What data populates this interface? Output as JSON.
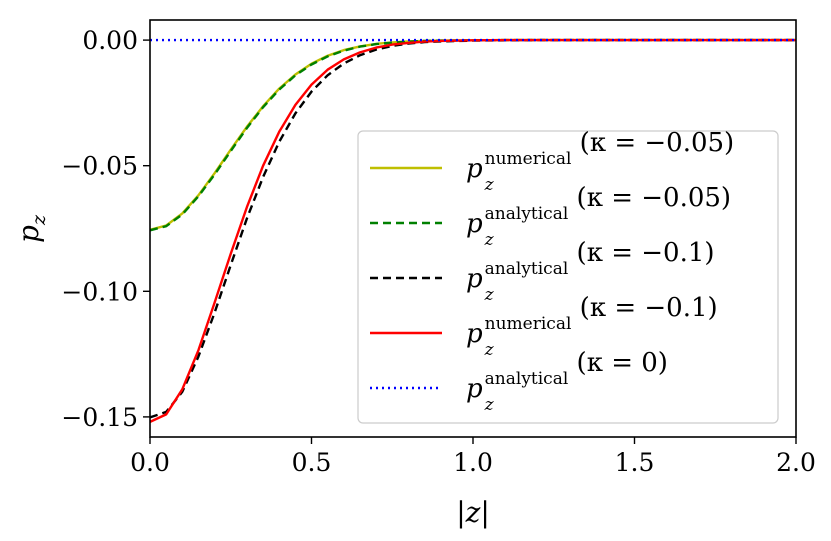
{
  "chart_data": {
    "type": "line",
    "xlabel": "|z|",
    "ylabel": "p",
    "ylabel_sub": "z",
    "xlim": [
      0.0,
      2.0
    ],
    "ylim": [
      -0.158,
      0.008
    ],
    "xticks": [
      0.0,
      0.5,
      1.0,
      1.5,
      2.0
    ],
    "xtick_labels": [
      "0.0",
      "0.5",
      "1.0",
      "1.5",
      "2.0"
    ],
    "yticks": [
      0.0,
      -0.05,
      -0.1,
      -0.15
    ],
    "ytick_labels": [
      "0.00",
      "−0.05",
      "−0.10",
      "−0.15"
    ],
    "grid": false,
    "legend_position": "center-right",
    "x": [
      0.0,
      0.05,
      0.1,
      0.15,
      0.2,
      0.25,
      0.3,
      0.35,
      0.4,
      0.45,
      0.5,
      0.55,
      0.6,
      0.65,
      0.7,
      0.75,
      0.8,
      0.85,
      0.9,
      1.0,
      1.1,
      1.2,
      1.4,
      1.6,
      1.8,
      2.0
    ],
    "series": [
      {
        "name": "p_z^numerical (κ = −0.05)",
        "legend_base": "p",
        "legend_sub": "z",
        "legend_sup": "numerical",
        "legend_rest": "(κ = −0.05)",
        "color": "#bfbf00",
        "dash": "solid",
        "values": [
          -0.0755,
          -0.0738,
          -0.069,
          -0.0618,
          -0.053,
          -0.0436,
          -0.0345,
          -0.0263,
          -0.0193,
          -0.0137,
          -0.0094,
          -0.0062,
          -0.004,
          -0.0025,
          -0.0015,
          -0.0009,
          -0.0005,
          -0.0003,
          -0.0002,
          -0.0001,
          0.0,
          0.0,
          0.0,
          0.0,
          0.0,
          0.0
        ]
      },
      {
        "name": "p_z^analytical (κ = −0.05)",
        "legend_base": "p",
        "legend_sub": "z",
        "legend_sup": "analytical",
        "legend_rest": "(κ = −0.05)",
        "color": "#008000",
        "dash": "dashed",
        "values": [
          -0.0757,
          -0.0741,
          -0.0694,
          -0.0622,
          -0.0535,
          -0.0441,
          -0.035,
          -0.0267,
          -0.0197,
          -0.014,
          -0.0097,
          -0.0065,
          -0.0042,
          -0.0026,
          -0.0016,
          -0.001,
          -0.0006,
          -0.0003,
          -0.0002,
          -0.0001,
          0.0,
          0.0,
          0.0,
          0.0,
          0.0,
          0.0
        ]
      },
      {
        "name": "p_z^analytical (κ = −0.1)",
        "legend_base": "p",
        "legend_sub": "z",
        "legend_sup": "analytical",
        "legend_rest": "(κ = −0.1)",
        "color": "#000000",
        "dash": "dashed",
        "values": [
          -0.1502,
          -0.148,
          -0.14,
          -0.126,
          -0.1085,
          -0.0895,
          -0.071,
          -0.0545,
          -0.0405,
          -0.0292,
          -0.0205,
          -0.014,
          -0.0093,
          -0.006,
          -0.0038,
          -0.0023,
          -0.0014,
          -0.0008,
          -0.0005,
          -0.0002,
          -0.0001,
          0.0,
          0.0,
          0.0,
          0.0,
          0.0
        ]
      },
      {
        "name": "p_z^numerical (κ = −0.1)",
        "legend_base": "p",
        "legend_sub": "z",
        "legend_sup": "numerical",
        "legend_rest": "(κ = −0.1)",
        "color": "#ff0000",
        "dash": "solid",
        "values": [
          -0.152,
          -0.149,
          -0.139,
          -0.1235,
          -0.1045,
          -0.085,
          -0.0665,
          -0.05,
          -0.0365,
          -0.0258,
          -0.0177,
          -0.0118,
          -0.0077,
          -0.0049,
          -0.003,
          -0.0018,
          -0.0011,
          -0.0006,
          -0.0003,
          -0.0001,
          0.0,
          0.0,
          0.0,
          0.0,
          0.0,
          0.0
        ]
      },
      {
        "name": "p_z^analytical (κ = 0)",
        "legend_base": "p",
        "legend_sub": "z",
        "legend_sup": "analytical",
        "legend_rest": "(κ = 0)",
        "color": "#0000ff",
        "dash": "dotted",
        "values": [
          0.0,
          0.0,
          0.0,
          0.0,
          0.0,
          0.0,
          0.0,
          0.0,
          0.0,
          0.0,
          0.0,
          0.0,
          0.0,
          0.0,
          0.0,
          0.0,
          0.0,
          0.0,
          0.0,
          0.0,
          0.0,
          0.0,
          0.0,
          0.0,
          0.0,
          0.0
        ]
      }
    ]
  }
}
